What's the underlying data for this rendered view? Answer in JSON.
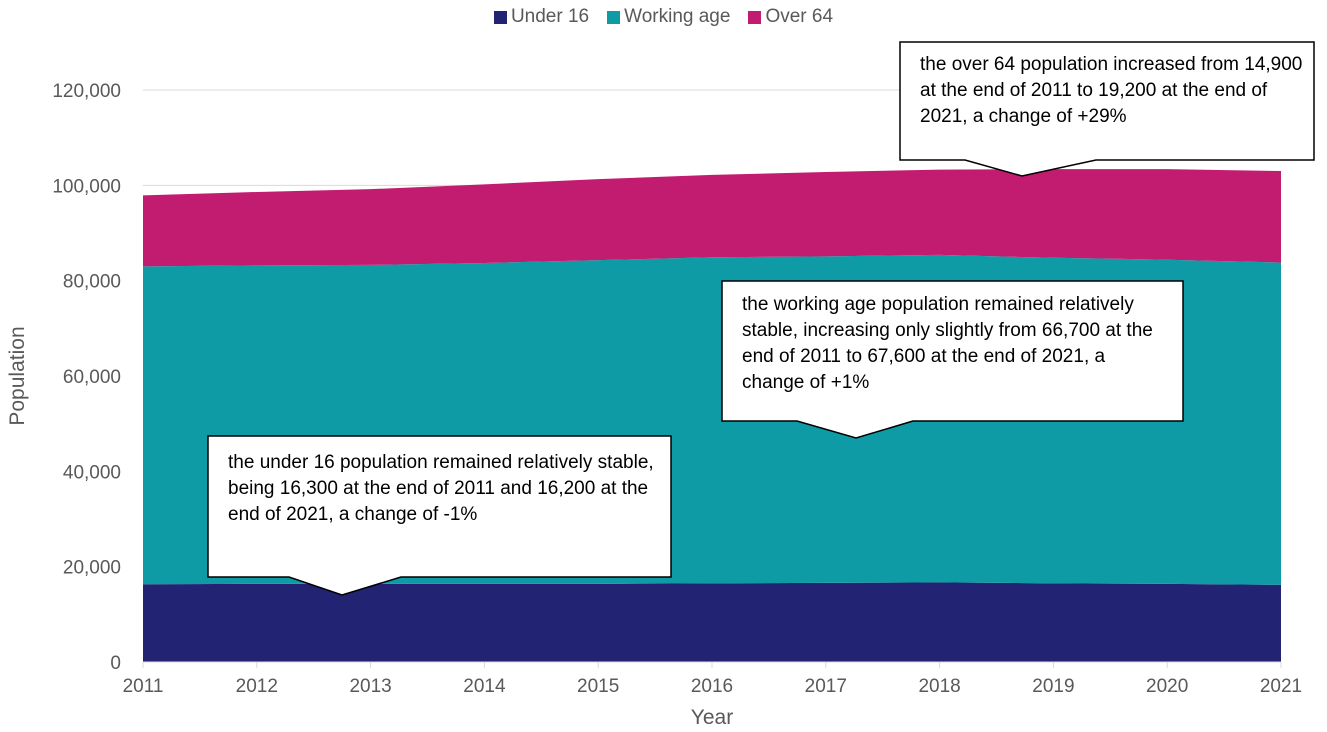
{
  "chart_data": {
    "type": "area",
    "stacked": true,
    "x": [
      2011,
      2012,
      2013,
      2014,
      2015,
      2016,
      2017,
      2018,
      2019,
      2020,
      2021
    ],
    "x_ticks": [
      "2011",
      "2012",
      "2013",
      "2014",
      "2015",
      "2016",
      "2017",
      "2018",
      "2019",
      "2020",
      "2021"
    ],
    "series": [
      {
        "name": "Under 16",
        "color": "#232373",
        "values": [
          16300,
          16400,
          16400,
          16400,
          16400,
          16500,
          16600,
          16700,
          16500,
          16400,
          16200
        ]
      },
      {
        "name": "Working age",
        "color": "#0f9ba6",
        "values": [
          66700,
          66800,
          66900,
          67300,
          67900,
          68400,
          68500,
          68700,
          68300,
          68000,
          67600
        ]
      },
      {
        "name": "Over 64",
        "color": "#c21c70",
        "values": [
          14900,
          15400,
          15900,
          16500,
          17000,
          17300,
          17700,
          17900,
          18600,
          19000,
          19200
        ]
      }
    ],
    "xlabel": "Year",
    "ylabel": "Population",
    "ylim": [
      0,
      120000
    ],
    "y_ticks": [
      "0",
      "20,000",
      "40,000",
      "60,000",
      "80,000",
      "100,000",
      "120,000"
    ],
    "y_tick_values": [
      0,
      20000,
      40000,
      60000,
      80000,
      100000,
      120000
    ],
    "grid": true,
    "legend_position": "top-center",
    "annotations": [
      {
        "id": "over64",
        "text": "the over 64 population increased from 14,900 at the end of 2011 to 19,200 at the end of 2021, a change of +29%"
      },
      {
        "id": "working",
        "text": "the working age population remained relatively stable, increasing only slightly from 66,700 at the end of 2011 to 67,600 at the end of 2021, a change of +1%"
      },
      {
        "id": "under16",
        "text": "the under 16 population remained relatively stable, being 16,300 at the end of 2011 and 16,200 at the end of 2021, a change of -1%"
      }
    ]
  }
}
